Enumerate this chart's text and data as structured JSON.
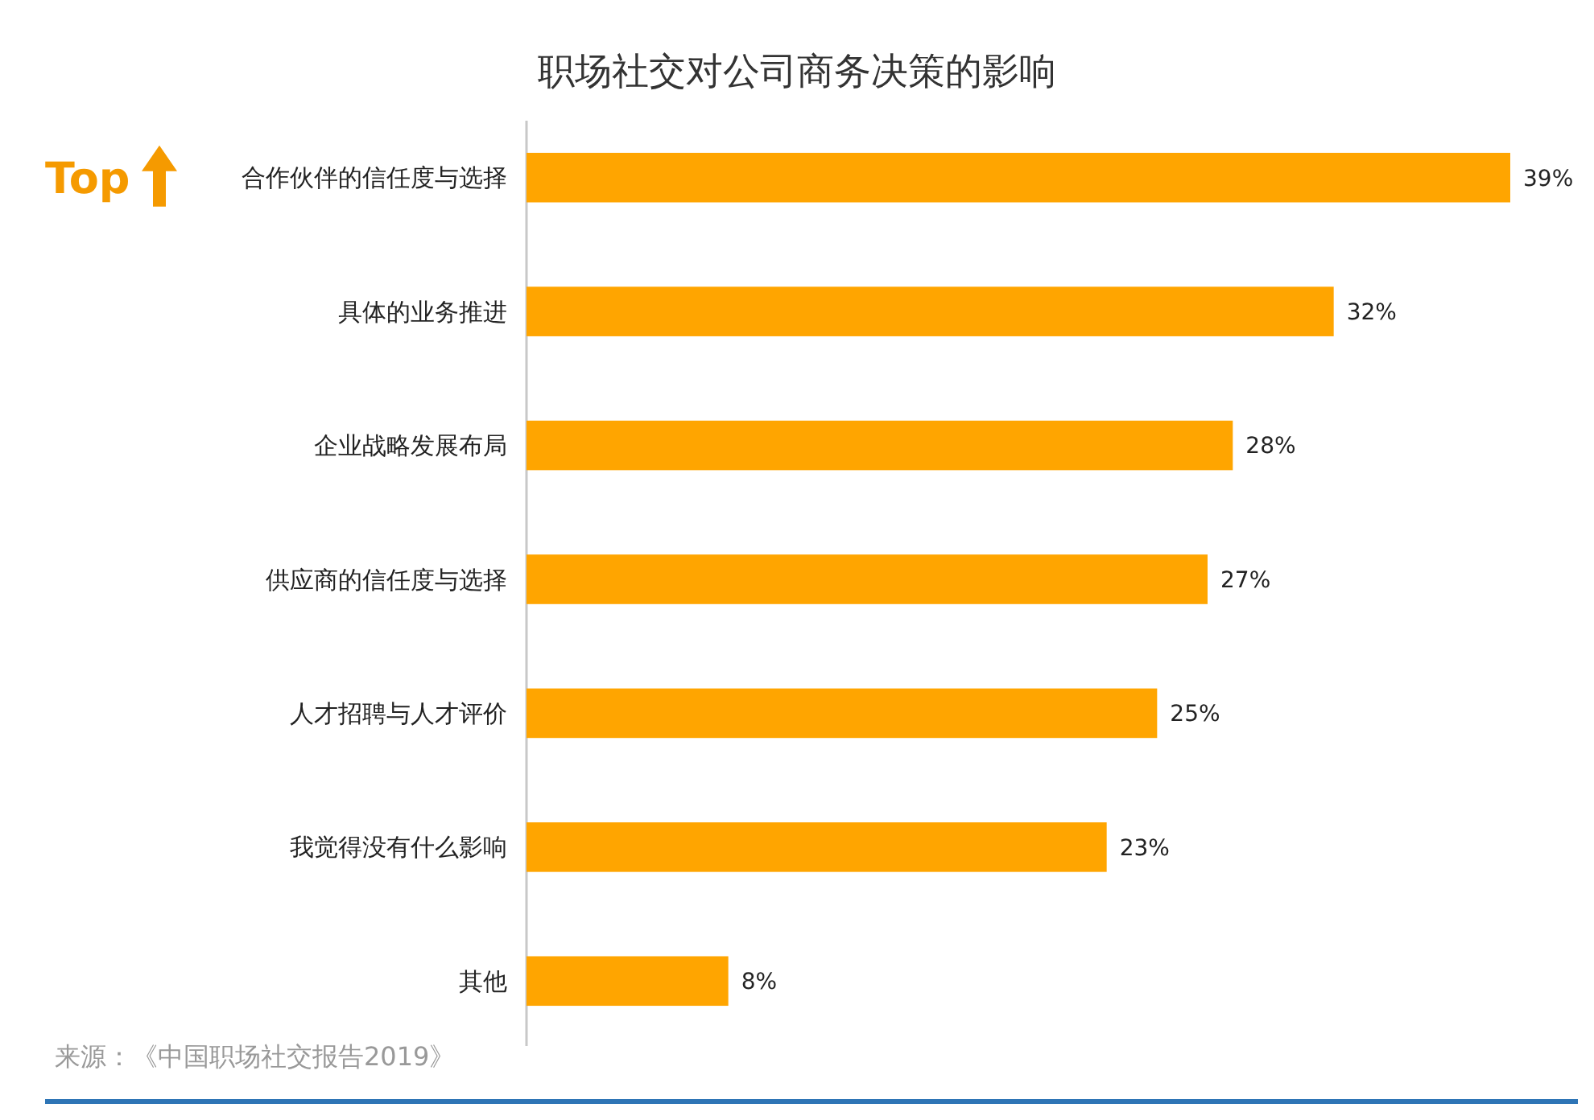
{
  "chart_data": {
    "type": "bar",
    "orientation": "horizontal",
    "title": "职场社交对公司商务决策的影响",
    "categories": [
      "合作伙伴的信任度与选择",
      "具体的业务推进",
      "企业战略发展布局",
      "供应商的信任度与选择",
      "人才招聘与人才评价",
      "我觉得没有什么影响",
      "其他"
    ],
    "values": [
      39,
      32,
      28,
      27,
      25,
      23,
      8
    ],
    "value_labels": [
      "39%",
      "32%",
      "28%",
      "27%",
      "25%",
      "23%",
      "8%"
    ],
    "color": "#ffa500",
    "annotations": [
      "Top",
      "来源：《中国职场社交报告2019》"
    ]
  }
}
